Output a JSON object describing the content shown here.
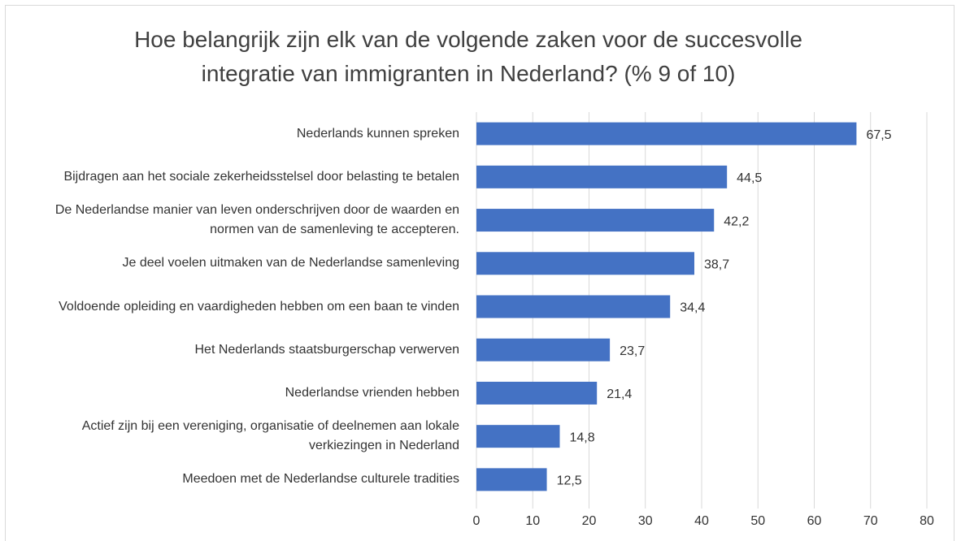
{
  "chart_data": {
    "type": "bar",
    "orientation": "horizontal",
    "title": "Hoe belangrijk zijn elk van de volgende zaken voor de succesvolle integratie van immigranten in Nederland?  (% 9 of 10)",
    "categories": [
      "Nederlands kunnen spreken",
      "Bijdragen aan het sociale zekerheidsstelsel door belasting te betalen",
      "De Nederlandse manier van leven onderschrijven door de waarden en normen van de samenleving te accepteren.",
      "Je deel voelen uitmaken van de Nederlandse samenleving",
      "Voldoende opleiding en vaardigheden hebben om een baan te vinden",
      "Het Nederlands staatsburgerschap verwerven",
      "Nederlandse vrienden hebben",
      "Actief zijn bij een vereniging, organisatie of deelnemen aan lokale verkiezingen in Nederland",
      "Meedoen met de Nederlandse culturele tradities"
    ],
    "values": [
      67.5,
      44.5,
      42.2,
      38.7,
      34.4,
      23.7,
      21.4,
      14.8,
      12.5
    ],
    "value_labels": [
      "67,5",
      "44,5",
      "42,2",
      "38,7",
      "34,4",
      "23,7",
      "21,4",
      "14,8",
      "12,5"
    ],
    "color": "#4472c4",
    "xlim": [
      0,
      80
    ],
    "xticks": [
      0,
      10,
      20,
      30,
      40,
      50,
      60,
      70,
      80
    ],
    "grid": true
  }
}
